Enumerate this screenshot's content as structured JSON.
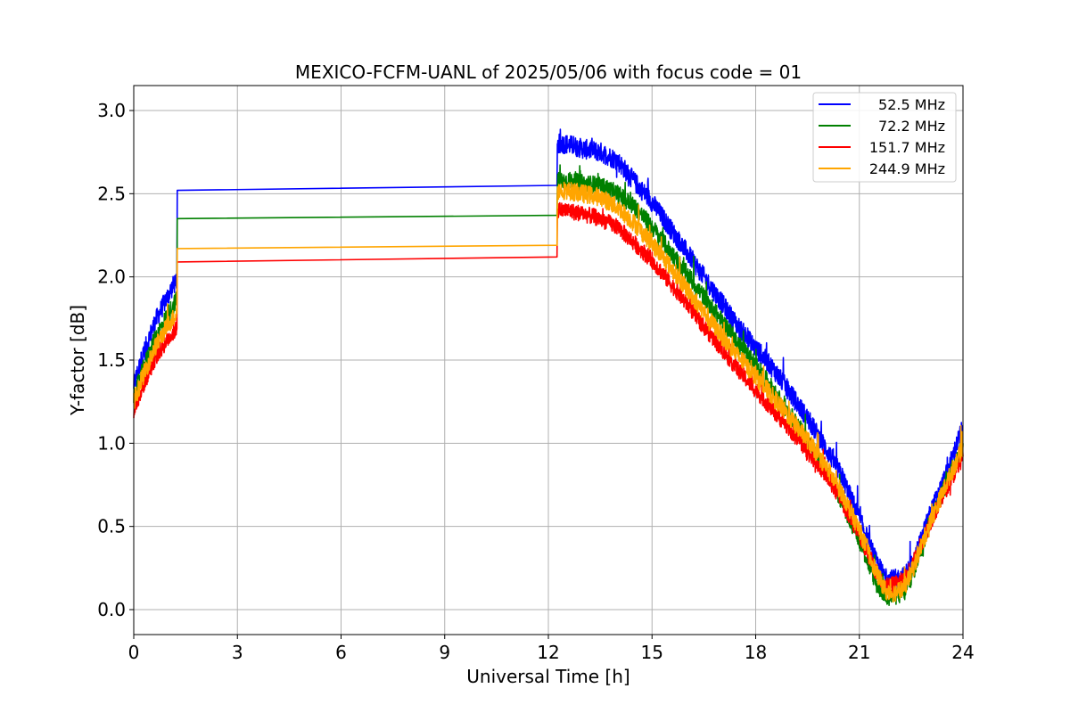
{
  "chart_data": {
    "type": "line",
    "title": "MEXICO-FCFM-UANL of 2025/05/06 with focus code = 01",
    "xlabel": "Universal Time [h]",
    "ylabel": "Y-factor [dB]",
    "xlim": [
      0,
      24
    ],
    "ylim": [
      -0.15,
      3.15
    ],
    "xticks": [
      0,
      3,
      6,
      9,
      12,
      15,
      18,
      21,
      24
    ],
    "xtick_labels": [
      "0",
      "3",
      "6",
      "9",
      "12",
      "15",
      "18",
      "21",
      "24"
    ],
    "yticks": [
      0.0,
      0.5,
      1.0,
      1.5,
      2.0,
      2.5,
      3.0
    ],
    "ytick_labels": [
      "0.0",
      "0.5",
      "1.0",
      "1.5",
      "2.0",
      "2.5",
      "3.0"
    ],
    "grid": true,
    "legend_position": "top-right",
    "series": [
      {
        "name": "52.5 MHz",
        "color": "#0000ff",
        "noise": 0.06,
        "x": [
          0,
          0.3,
          0.6,
          0.9,
          1.2,
          1.25,
          1.26,
          12.25,
          12.26,
          12.5,
          13.0,
          13.5,
          14.0,
          14.5,
          15.0,
          15.5,
          16.0,
          16.5,
          17.0,
          17.5,
          18.0,
          18.5,
          19.0,
          19.5,
          20.0,
          20.5,
          21.0,
          21.5,
          21.8,
          22.0,
          22.3,
          22.6,
          23.0,
          23.5,
          24.0
        ],
        "y": [
          1.35,
          1.55,
          1.72,
          1.85,
          1.97,
          1.98,
          2.52,
          2.55,
          2.8,
          2.8,
          2.77,
          2.75,
          2.7,
          2.57,
          2.45,
          2.3,
          2.15,
          2.0,
          1.85,
          1.7,
          1.57,
          1.45,
          1.3,
          1.15,
          0.98,
          0.8,
          0.55,
          0.28,
          0.18,
          0.18,
          0.2,
          0.3,
          0.55,
          0.8,
          1.1
        ]
      },
      {
        "name": "72.2 MHz",
        "color": "#008000",
        "noise": 0.055,
        "x": [
          0,
          0.3,
          0.6,
          0.9,
          1.2,
          1.25,
          1.26,
          12.25,
          12.26,
          12.5,
          13.0,
          13.5,
          14.0,
          14.5,
          15.0,
          15.5,
          16.0,
          16.5,
          17.0,
          17.5,
          18.0,
          18.5,
          19.0,
          19.5,
          20.0,
          20.5,
          21.0,
          21.5,
          21.8,
          22.0,
          22.3,
          22.6,
          23.0,
          23.5,
          24.0
        ],
        "y": [
          1.28,
          1.46,
          1.62,
          1.74,
          1.85,
          1.86,
          2.35,
          2.37,
          2.58,
          2.58,
          2.56,
          2.55,
          2.5,
          2.42,
          2.3,
          2.16,
          2.02,
          1.88,
          1.74,
          1.6,
          1.47,
          1.32,
          1.17,
          1.02,
          0.85,
          0.65,
          0.42,
          0.15,
          0.08,
          0.08,
          0.1,
          0.25,
          0.5,
          0.75,
          1.0
        ]
      },
      {
        "name": "151.7 MHz",
        "color": "#ff0000",
        "noise": 0.05,
        "x": [
          0,
          0.3,
          0.6,
          0.9,
          1.2,
          1.25,
          1.26,
          12.25,
          12.26,
          12.5,
          13.0,
          13.5,
          14.0,
          14.5,
          15.0,
          15.5,
          16.0,
          16.5,
          17.0,
          17.5,
          18.0,
          18.5,
          19.0,
          19.5,
          20.0,
          20.5,
          21.0,
          21.5,
          21.8,
          22.0,
          22.3,
          22.6,
          23.0,
          23.5,
          24.0
        ],
        "y": [
          1.2,
          1.36,
          1.5,
          1.6,
          1.68,
          1.69,
          2.09,
          2.12,
          2.4,
          2.4,
          2.38,
          2.35,
          2.3,
          2.2,
          2.1,
          1.97,
          1.84,
          1.7,
          1.57,
          1.44,
          1.32,
          1.2,
          1.08,
          0.95,
          0.82,
          0.65,
          0.45,
          0.22,
          0.14,
          0.15,
          0.18,
          0.3,
          0.5,
          0.72,
          0.92
        ]
      },
      {
        "name": "244.9 MHz",
        "color": "#ffa500",
        "noise": 0.055,
        "x": [
          0,
          0.3,
          0.6,
          0.9,
          1.2,
          1.25,
          1.26,
          12.25,
          12.26,
          12.5,
          13.0,
          13.5,
          14.0,
          14.5,
          15.0,
          15.5,
          16.0,
          16.5,
          17.0,
          17.5,
          18.0,
          18.5,
          19.0,
          19.5,
          20.0,
          20.5,
          21.0,
          21.5,
          21.8,
          22.0,
          22.3,
          22.6,
          23.0,
          23.5,
          24.0
        ],
        "y": [
          1.25,
          1.42,
          1.57,
          1.68,
          1.77,
          1.78,
          2.17,
          2.19,
          2.52,
          2.52,
          2.5,
          2.48,
          2.42,
          2.32,
          2.2,
          2.07,
          1.93,
          1.79,
          1.65,
          1.52,
          1.4,
          1.28,
          1.15,
          1.02,
          0.87,
          0.7,
          0.48,
          0.22,
          0.1,
          0.1,
          0.13,
          0.27,
          0.5,
          0.75,
          0.98
        ]
      }
    ]
  }
}
